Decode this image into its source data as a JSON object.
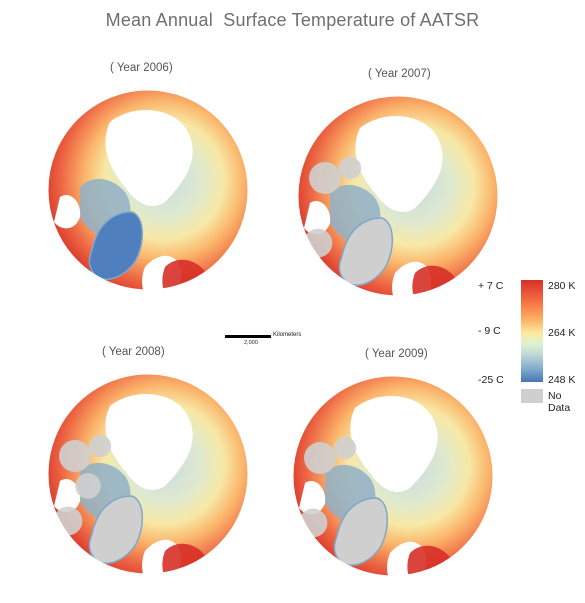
{
  "title": "Mean Annual  Surface Temperature of AATSR",
  "panels": [
    {
      "year_label": "( Year 2006)",
      "cold_core": "#4f7fbd",
      "nodata_extent": 0.05
    },
    {
      "year_label": "( Year 2007)",
      "cold_core": "#cfcfcf",
      "nodata_extent": 0.35
    },
    {
      "year_label": "( Year 2008)",
      "cold_core": "#cfcfcf",
      "nodata_extent": 0.55
    },
    {
      "year_label": "( Year 2009)",
      "cold_core": "#cfcfcf",
      "nodata_extent": 0.4
    }
  ],
  "scale_bar": {
    "unit": "Kilometers",
    "distance": "2,000"
  },
  "legend": {
    "celsius": [
      "+ 7 C",
      "- 9 C",
      "-25 C"
    ],
    "kelvin": [
      "280 K",
      "264 K",
      "248 K"
    ],
    "no_data_label": "No Data",
    "colors": {
      "warm": "#d73027",
      "mid": "#fee8a0",
      "cold": "#4575b4",
      "no_data": "#cfcfcf"
    }
  }
}
